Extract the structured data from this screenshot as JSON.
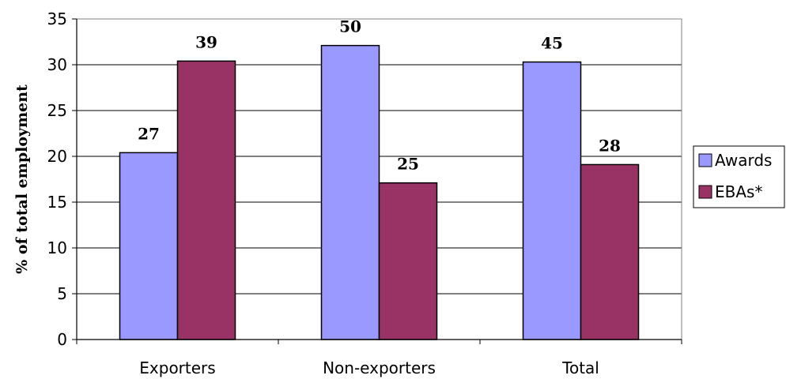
{
  "chart_data": {
    "type": "bar",
    "categories": [
      "Exporters",
      "Non-exporters",
      "Total"
    ],
    "series": [
      {
        "name": "Awards",
        "color": "#9999ff",
        "values": [
          20.4,
          32.1,
          30.3
        ],
        "labels": [
          "27",
          "50",
          "45"
        ]
      },
      {
        "name": "EBAs*",
        "color": "#993366",
        "values": [
          30.4,
          17.1,
          19.1
        ],
        "labels": [
          "39",
          "25",
          "28"
        ]
      }
    ],
    "title": "",
    "xlabel": "",
    "ylabel": "% of total employment",
    "ylim": [
      0,
      35
    ],
    "yticks": [
      0,
      5,
      10,
      15,
      20,
      25,
      30,
      35
    ],
    "grid": true,
    "legend_position": "right"
  }
}
